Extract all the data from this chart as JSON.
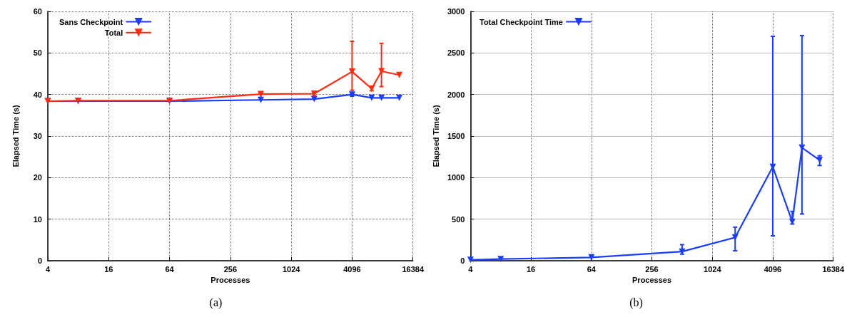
{
  "chart_data": [
    {
      "type": "line",
      "xlabel": "Processes",
      "ylabel": "Elapsed Time (s)",
      "log": "x",
      "xlim": [
        4,
        16384
      ],
      "xticks": [
        4,
        16,
        64,
        256,
        1024,
        4096,
        16384
      ],
      "ylim": [
        0,
        60
      ],
      "yticks": [
        0,
        10,
        20,
        30,
        40,
        50,
        60
      ],
      "grid": true,
      "legend": "top left",
      "marker": "triangle",
      "line_style": "solid",
      "annotations": [
        "(a)"
      ],
      "x": [
        4,
        8,
        64,
        512,
        1728,
        4096,
        6400,
        8000,
        12000
      ],
      "series": [
        {
          "name": "Sans Checkpoint",
          "color": "#1a3cff",
          "values": [
            38.4,
            38.4,
            38.4,
            38.7,
            38.9,
            40.0,
            39.2,
            39.2,
            39.2
          ],
          "errors": [
            null,
            null,
            null,
            null,
            null,
            [
              39.6,
              40.4
            ],
            null,
            null,
            null
          ]
        },
        {
          "name": "Total",
          "color": "#ff2a10",
          "values": [
            38.4,
            38.5,
            38.5,
            40.1,
            40.2,
            45.5,
            41.4,
            45.6,
            44.7
          ],
          "errors": [
            null,
            null,
            null,
            [
              39.3,
              40.4
            ],
            [
              39.7,
              40.8
            ],
            [
              41.0,
              52.8
            ],
            [
              40.9,
              41.9
            ],
            [
              41.9,
              52.3
            ],
            null
          ]
        }
      ]
    },
    {
      "type": "line",
      "xlabel": "Processes",
      "ylabel": "Elapsed Time (s)",
      "log": "x",
      "xlim": [
        4,
        16384
      ],
      "xticks": [
        4,
        16,
        64,
        256,
        1024,
        4096,
        16384
      ],
      "ylim": [
        0,
        3000
      ],
      "yticks": [
        0,
        500,
        1000,
        1500,
        2000,
        2500,
        3000
      ],
      "grid": true,
      "legend": "top left",
      "marker": "triangle",
      "line_style": "solid",
      "annotations": [
        "(b)"
      ],
      "x": [
        4,
        8,
        64,
        512,
        1728,
        4096,
        6400,
        8000,
        12000
      ],
      "series": [
        {
          "name": "Total Checkpoint Time",
          "color": "#1a3cff",
          "values": [
            10,
            20,
            40,
            110,
            280,
            1130,
            470,
            1360,
            1210
          ],
          "errors": [
            null,
            null,
            null,
            [
              79,
              193
            ],
            [
              120,
              404
            ],
            [
              300,
              2700
            ],
            [
              442,
              594
            ],
            [
              562,
              2709
            ],
            [
              1146,
              1263
            ]
          ]
        }
      ]
    }
  ]
}
